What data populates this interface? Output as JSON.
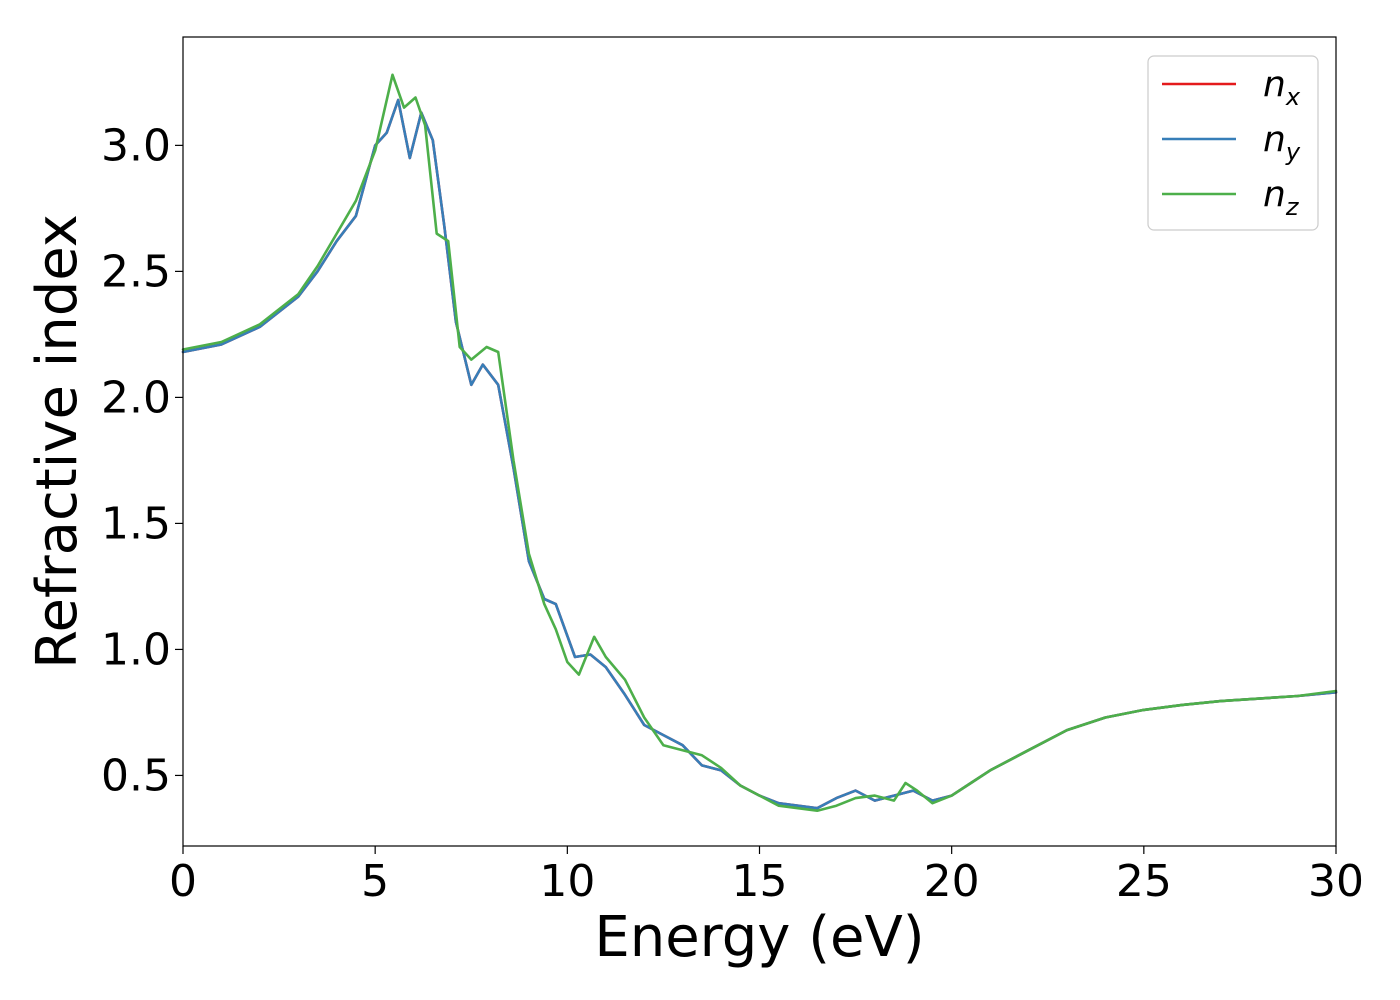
{
  "chart_data": {
    "type": "line",
    "xlabel": "Energy (eV)",
    "ylabel": "Refractive index",
    "xlim": [
      0,
      30
    ],
    "ylim": [
      0.22,
      3.43
    ],
    "xticks": [
      0,
      5,
      10,
      15,
      20,
      25,
      30
    ],
    "xtick_labels": [
      "0",
      "5",
      "10",
      "15",
      "20",
      "25",
      "30"
    ],
    "yticks": [
      0.5,
      1.0,
      1.5,
      2.0,
      2.5,
      3.0
    ],
    "ytick_labels": [
      "0.5",
      "1.0",
      "1.5",
      "2.0",
      "2.5",
      "3.0"
    ],
    "grid": false,
    "legend_position": "top-right",
    "series": [
      {
        "name": "n_x",
        "label_base": "n",
        "label_sub": "x",
        "color": "#e41a1c",
        "x": [
          0,
          1,
          2,
          3,
          3.5,
          4,
          4.5,
          5,
          5.3,
          5.6,
          5.9,
          6.2,
          6.5,
          6.8,
          7.1,
          7.5,
          7.8,
          8.2,
          8.6,
          9.0,
          9.4,
          9.7,
          10.2,
          10.6,
          11.0,
          11.5,
          12.0,
          12.5,
          13.0,
          13.5,
          14.0,
          14.5,
          15.0,
          15.5,
          16.0,
          16.5,
          17.0,
          17.5,
          18.0,
          18.5,
          19.0,
          19.5,
          20.0,
          20.5,
          21.0,
          22.0,
          23.0,
          24.0,
          25.0,
          26.0,
          27.0,
          28.0,
          29.0,
          30.0
        ],
        "y": [
          2.18,
          2.21,
          2.28,
          2.4,
          2.5,
          2.62,
          2.72,
          3.0,
          3.05,
          3.18,
          2.95,
          3.13,
          3.02,
          2.68,
          2.3,
          2.05,
          2.13,
          2.05,
          1.72,
          1.35,
          1.2,
          1.18,
          0.97,
          0.98,
          0.93,
          0.82,
          0.7,
          0.66,
          0.62,
          0.54,
          0.52,
          0.46,
          0.42,
          0.39,
          0.38,
          0.37,
          0.41,
          0.44,
          0.4,
          0.42,
          0.44,
          0.4,
          0.42,
          0.47,
          0.52,
          0.6,
          0.68,
          0.73,
          0.76,
          0.78,
          0.795,
          0.805,
          0.815,
          0.83
        ]
      },
      {
        "name": "n_y",
        "label_base": "n",
        "label_sub": "y",
        "color": "#377eb8",
        "x": [
          0,
          1,
          2,
          3,
          3.5,
          4,
          4.5,
          5,
          5.3,
          5.6,
          5.9,
          6.2,
          6.5,
          6.8,
          7.1,
          7.5,
          7.8,
          8.2,
          8.6,
          9.0,
          9.4,
          9.7,
          10.2,
          10.6,
          11.0,
          11.5,
          12.0,
          12.5,
          13.0,
          13.5,
          14.0,
          14.5,
          15.0,
          15.5,
          16.0,
          16.5,
          17.0,
          17.5,
          18.0,
          18.5,
          19.0,
          19.5,
          20.0,
          20.5,
          21.0,
          22.0,
          23.0,
          24.0,
          25.0,
          26.0,
          27.0,
          28.0,
          29.0,
          30.0
        ],
        "y": [
          2.18,
          2.21,
          2.28,
          2.4,
          2.5,
          2.62,
          2.72,
          3.0,
          3.05,
          3.18,
          2.95,
          3.13,
          3.02,
          2.68,
          2.3,
          2.05,
          2.13,
          2.05,
          1.72,
          1.35,
          1.2,
          1.18,
          0.97,
          0.98,
          0.93,
          0.82,
          0.7,
          0.66,
          0.62,
          0.54,
          0.52,
          0.46,
          0.42,
          0.39,
          0.38,
          0.37,
          0.41,
          0.44,
          0.4,
          0.42,
          0.44,
          0.4,
          0.42,
          0.47,
          0.52,
          0.6,
          0.68,
          0.73,
          0.76,
          0.78,
          0.795,
          0.805,
          0.815,
          0.83
        ]
      },
      {
        "name": "n_z",
        "label_base": "n",
        "label_sub": "z",
        "color": "#4daf4a",
        "x": [
          0,
          1,
          2,
          3,
          3.5,
          4,
          4.5,
          5,
          5.45,
          5.75,
          6.05,
          6.3,
          6.6,
          6.9,
          7.2,
          7.5,
          7.9,
          8.2,
          8.6,
          9.0,
          9.4,
          9.7,
          10.0,
          10.3,
          10.7,
          11.0,
          11.5,
          12.0,
          12.5,
          13.0,
          13.5,
          14.0,
          14.5,
          15.0,
          15.5,
          16.0,
          16.5,
          17.0,
          17.5,
          18.0,
          18.5,
          18.8,
          19.1,
          19.5,
          20.0,
          20.5,
          21.0,
          22.0,
          23.0,
          24.0,
          25.0,
          26.0,
          27.0,
          28.0,
          29.0,
          30.0
        ],
        "y": [
          2.19,
          2.22,
          2.29,
          2.41,
          2.52,
          2.65,
          2.78,
          2.98,
          3.28,
          3.15,
          3.19,
          3.08,
          2.65,
          2.62,
          2.2,
          2.15,
          2.2,
          2.18,
          1.75,
          1.38,
          1.18,
          1.08,
          0.95,
          0.9,
          1.05,
          0.97,
          0.88,
          0.73,
          0.62,
          0.6,
          0.58,
          0.53,
          0.46,
          0.42,
          0.38,
          0.37,
          0.36,
          0.38,
          0.41,
          0.42,
          0.4,
          0.47,
          0.44,
          0.39,
          0.42,
          0.47,
          0.52,
          0.6,
          0.68,
          0.73,
          0.76,
          0.78,
          0.795,
          0.805,
          0.815,
          0.835
        ]
      }
    ]
  }
}
